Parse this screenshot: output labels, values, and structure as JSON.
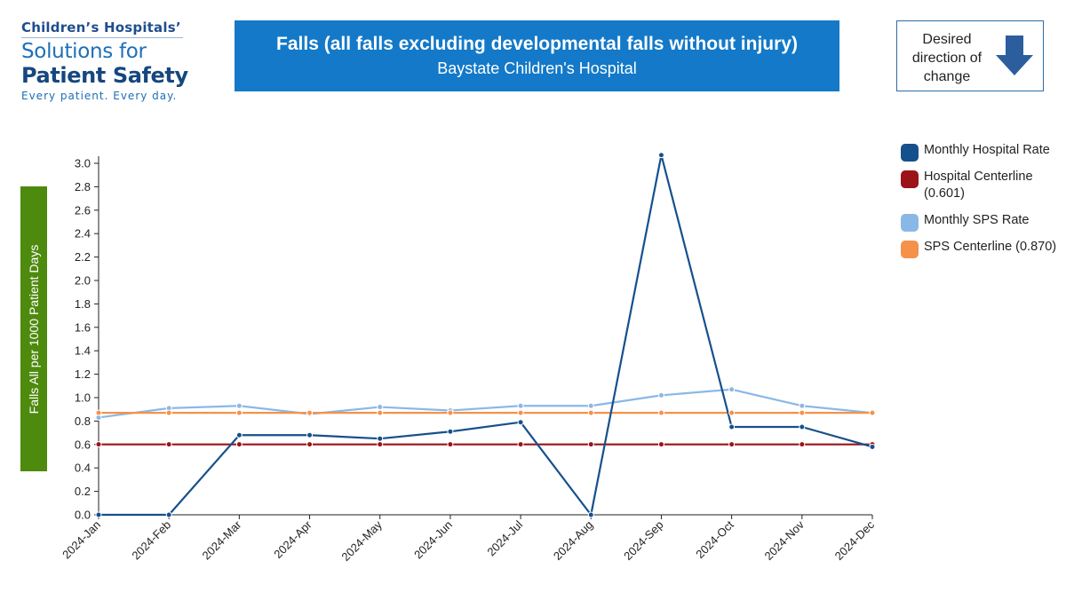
{
  "logo": {
    "line1": "Children’s Hospitals’",
    "line2": "Solutions for",
    "line3": "Patient Safety",
    "tagline": "Every patient. Every day."
  },
  "direction": {
    "label": "Desired direction of change",
    "arrow_icon": "down-arrow-icon",
    "arrow_color": "#2c5e9e"
  },
  "chart_data": {
    "type": "line",
    "title": "Falls (all falls excluding developmental falls without injury)",
    "subtitle": "Baystate Children's Hospital",
    "ylabel": "Falls All per 1000 Patient Days",
    "xlabel": "",
    "ylim": [
      0,
      3.0
    ],
    "yticks": [
      "0.0",
      "0.2",
      "0.4",
      "0.6",
      "0.8",
      "1.0",
      "1.2",
      "1.4",
      "1.6",
      "1.8",
      "2.0",
      "2.2",
      "2.4",
      "2.6",
      "2.8",
      "3.0"
    ],
    "categories": [
      "2024-Jan",
      "2024-Feb",
      "2024-Mar",
      "2024-Apr",
      "2024-May",
      "2024-Jun",
      "2024-Jul",
      "2024-Aug",
      "2024-Sep",
      "2024-Oct",
      "2024-Nov",
      "2024-Dec"
    ],
    "grid": false,
    "legend_position": "right",
    "series": [
      {
        "name": "Monthly SPS Rate",
        "color": "#8ab8e6",
        "values": [
          0.83,
          0.91,
          0.93,
          0.86,
          0.92,
          0.89,
          0.93,
          0.93,
          1.02,
          1.07,
          0.93,
          0.87
        ]
      },
      {
        "name": "SPS Centerline (0.870)",
        "color": "#f5924a",
        "values": [
          0.87,
          0.87,
          0.87,
          0.87,
          0.87,
          0.87,
          0.87,
          0.87,
          0.87,
          0.87,
          0.87,
          0.87
        ]
      },
      {
        "name": "Hospital Centerline (0.601)",
        "color": "#9b1218",
        "values": [
          0.601,
          0.601,
          0.601,
          0.601,
          0.601,
          0.601,
          0.601,
          0.601,
          0.601,
          0.601,
          0.601,
          0.601
        ]
      },
      {
        "name": "Monthly Hospital Rate",
        "color": "#16508c",
        "values": [
          0.0,
          0.0,
          0.68,
          0.68,
          0.65,
          0.71,
          0.79,
          0.0,
          3.07,
          0.75,
          0.75,
          0.58
        ]
      }
    ]
  },
  "legend": [
    {
      "label": "Monthly Hospital Rate",
      "color": "#16508c"
    },
    {
      "label": "Hospital Centerline (0.601)",
      "color": "#9b1218"
    },
    {
      "label": "Monthly SPS Rate",
      "color": "#8ab8e6"
    },
    {
      "label": "SPS Centerline (0.870)",
      "color": "#f5924a"
    }
  ]
}
